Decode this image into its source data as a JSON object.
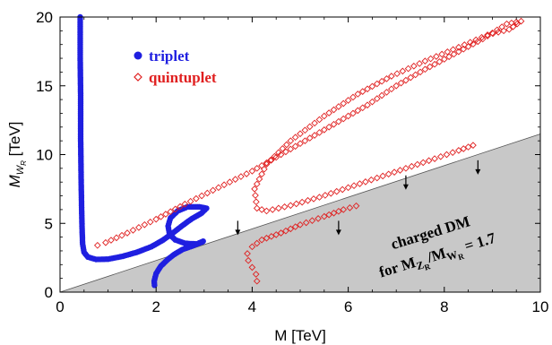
{
  "chart_data": {
    "type": "scatter",
    "title": "",
    "xlabel": "M [TeV]",
    "ylabel": {
      "main": "M",
      "sub": "W",
      "subsub": "R",
      "unit": " [TeV]"
    },
    "xlim": [
      0,
      10
    ],
    "ylim": [
      0,
      20
    ],
    "xticks": [
      "0",
      "2",
      "4",
      "6",
      "8",
      "10"
    ],
    "yticks": [
      "0",
      "5",
      "10",
      "15",
      "20"
    ],
    "grid": false,
    "legend_placement": "top-left",
    "excluded_region": {
      "label_line1": "charged DM",
      "label_line2": {
        "prefix": "for M",
        "sub": "Z",
        "subsub": "R",
        "mid": "/M",
        "sub2": "W",
        "subsub2": "R",
        "suffix": " = 1.7"
      },
      "boundary": [
        [
          0,
          0
        ],
        [
          10,
          11.5
        ]
      ],
      "fill": "#c8c8c8",
      "arrows": [
        [
          3.7,
          4.6
        ],
        [
          5.8,
          4.6
        ],
        [
          7.2,
          7.9
        ],
        [
          8.7,
          9.0
        ]
      ]
    },
    "series": [
      {
        "name": "triplet",
        "marker": "filled-circle",
        "color": "#1f1fe0",
        "segments": [
          [
            [
              0.42,
              20
            ],
            [
              0.42,
              17
            ],
            [
              0.43,
              14
            ],
            [
              0.43,
              11
            ],
            [
              0.44,
              8
            ],
            [
              0.45,
              6
            ],
            [
              0.46,
              4.5
            ],
            [
              0.47,
              3.5
            ],
            [
              0.5,
              2.9
            ],
            [
              0.58,
              2.55
            ],
            [
              0.75,
              2.38
            ],
            [
              1.0,
              2.4
            ],
            [
              1.3,
              2.6
            ],
            [
              1.6,
              2.9
            ],
            [
              1.9,
              3.3
            ],
            [
              2.15,
              3.8
            ],
            [
              2.35,
              4.3
            ],
            [
              2.55,
              4.85
            ],
            [
              2.75,
              5.35
            ],
            [
              2.95,
              5.75
            ],
            [
              3.05,
              6.1
            ],
            [
              2.9,
              6.2
            ],
            [
              2.65,
              6.2
            ],
            [
              2.45,
              5.9
            ],
            [
              2.3,
              5.4
            ],
            [
              2.25,
              4.8
            ],
            [
              2.28,
              4.2
            ],
            [
              2.4,
              3.8
            ],
            [
              2.6,
              3.55
            ],
            [
              2.85,
              3.5
            ],
            [
              3.0,
              3.7
            ]
          ],
          [
            [
              2.98,
              3.7
            ],
            [
              2.75,
              3.35
            ],
            [
              2.55,
              3.1
            ],
            [
              2.38,
              2.75
            ],
            [
              2.25,
              2.4
            ],
            [
              2.1,
              1.9
            ],
            [
              2.0,
              1.35
            ],
            [
              1.96,
              0.8
            ],
            [
              1.97,
              0.35
            ]
          ]
        ]
      },
      {
        "name": "quintuplet",
        "marker": "open-diamond",
        "color": "#e01f1f",
        "segments": [
          [
            [
              0.78,
              3.4
            ],
            [
              0.95,
              3.6
            ],
            [
              1.4,
              4.3
            ],
            [
              2.0,
              5.3
            ],
            [
              2.6,
              6.4
            ],
            [
              3.3,
              7.6
            ],
            [
              4.0,
              8.8
            ],
            [
              4.6,
              10.0
            ],
            [
              5.2,
              11.2
            ],
            [
              5.8,
              12.4
            ],
            [
              6.4,
              13.6
            ],
            [
              7.0,
              15.0
            ],
            [
              7.6,
              16.2
            ],
            [
              8.2,
              17.3
            ],
            [
              8.8,
              18.4
            ],
            [
              9.3,
              19.5
            ],
            [
              9.6,
              19.7
            ],
            [
              9.35,
              19.1
            ],
            [
              8.9,
              18.7
            ],
            [
              8.3,
              17.8
            ],
            [
              7.6,
              16.8
            ],
            [
              6.9,
              15.7
            ],
            [
              6.2,
              14.4
            ],
            [
              5.5,
              12.8
            ],
            [
              4.8,
              11.0
            ],
            [
              4.3,
              9.3
            ],
            [
              4.05,
              7.5
            ],
            [
              4.1,
              6.1
            ],
            [
              4.3,
              5.9
            ],
            [
              4.8,
              6.3
            ],
            [
              5.4,
              6.9
            ],
            [
              6.0,
              7.6
            ],
            [
              6.6,
              8.3
            ],
            [
              7.2,
              9.0
            ],
            [
              7.8,
              9.7
            ],
            [
              8.3,
              10.3
            ],
            [
              8.7,
              10.8
            ]
          ],
          [
            [
              4.1,
              0.8
            ],
            [
              4.08,
              1.3
            ],
            [
              4.0,
              1.8
            ],
            [
              3.92,
              2.3
            ],
            [
              3.9,
              2.8
            ],
            [
              4.0,
              3.3
            ],
            [
              4.2,
              3.8
            ],
            [
              4.6,
              4.3
            ],
            [
              5.0,
              4.9
            ],
            [
              5.5,
              5.5
            ],
            [
              5.9,
              6.0
            ],
            [
              6.3,
              6.4
            ]
          ]
        ]
      }
    ]
  }
}
